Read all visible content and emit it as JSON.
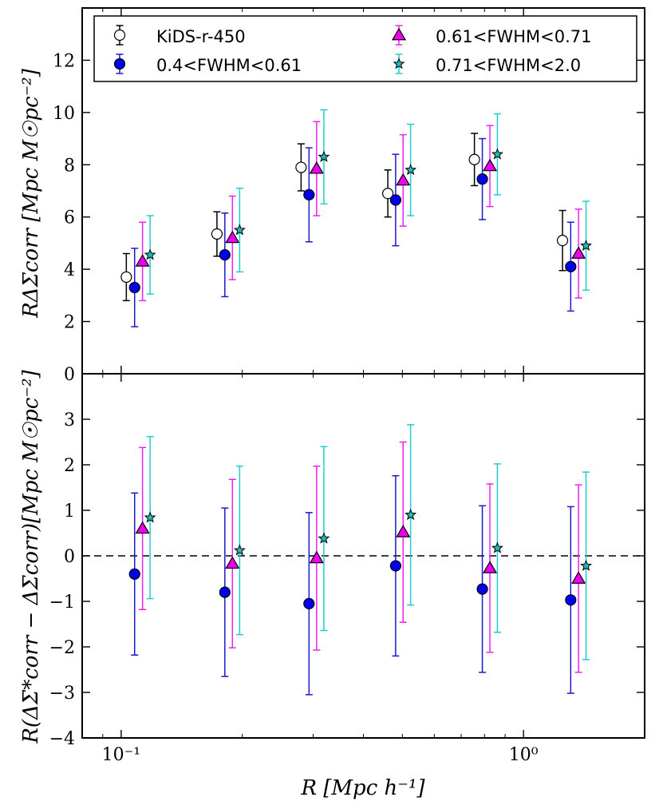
{
  "chart_data": {
    "type": "scatter",
    "x_scale": "log",
    "xlim": [
      0.08,
      2.0
    ],
    "xlabel": "R  [Mpc h⁻¹]",
    "x_ticks": [
      {
        "value": 0.1,
        "label": "10⁻¹"
      },
      {
        "value": 1.0,
        "label": "10⁰"
      }
    ],
    "panels": [
      {
        "id": "top",
        "ylabel": "RΔΣcorr  [Mpc M☉pc⁻²]",
        "ylim": [
          0,
          14
        ],
        "y_ticks": [
          0,
          2,
          4,
          6,
          8,
          10,
          12
        ],
        "zero_line": false,
        "series": [
          {
            "name": "KiDS-r-450",
            "marker": "circle",
            "fill": "#ffffff",
            "stroke": "#000000",
            "errcolor": "#000000",
            "x": [
              0.103,
              0.173,
              0.28,
              0.46,
              0.755,
              1.25
            ],
            "y": [
              3.7,
              5.35,
              7.9,
              6.9,
              8.2,
              5.1
            ],
            "err": [
              0.9,
              0.85,
              0.9,
              0.9,
              1.0,
              1.15
            ]
          },
          {
            "name": "0.4<FWHM<0.61",
            "marker": "circle",
            "fill": "#0000ee",
            "stroke": "#000000",
            "errcolor": "#1a1acc",
            "x": [
              0.108,
              0.181,
              0.293,
              0.481,
              0.79,
              1.31
            ],
            "y": [
              3.3,
              4.55,
              6.85,
              6.65,
              7.45,
              4.1
            ],
            "err": [
              1.5,
              1.6,
              1.8,
              1.75,
              1.55,
              1.7
            ]
          },
          {
            "name": "0.61<FWHM<0.71",
            "marker": "triangle",
            "fill": "#ee00ee",
            "stroke": "#000000",
            "errcolor": "#ee22ee",
            "x": [
              0.113,
              0.189,
              0.306,
              0.502,
              0.825,
              1.37
            ],
            "y": [
              4.3,
              5.2,
              7.85,
              7.4,
              7.95,
              4.6
            ],
            "err": [
              1.5,
              1.6,
              1.8,
              1.75,
              1.55,
              1.7
            ]
          },
          {
            "name": "0.71<FWHM<2.0",
            "marker": "star",
            "fill": "#22bbbb",
            "stroke": "#000000",
            "errcolor": "#22cccc",
            "x": [
              0.118,
              0.197,
              0.319,
              0.524,
              0.861,
              1.43
            ],
            "y": [
              4.55,
              5.5,
              8.3,
              7.8,
              8.4,
              4.9
            ],
            "err": [
              1.5,
              1.6,
              1.8,
              1.75,
              1.55,
              1.7
            ]
          }
        ]
      },
      {
        "id": "bottom",
        "ylabel": "R(ΔΣ*corr − ΔΣcorr)[Mpc M☉pc⁻²]",
        "ylim": [
          -4,
          4
        ],
        "y_ticks": [
          -4,
          -3,
          -2,
          -1,
          0,
          1,
          2,
          3
        ],
        "zero_line": true,
        "series": [
          {
            "name": "0.4<FWHM<0.61",
            "marker": "circle",
            "fill": "#0000ee",
            "stroke": "#000000",
            "errcolor": "#1a1acc",
            "x": [
              0.108,
              0.181,
              0.293,
              0.481,
              0.79,
              1.31
            ],
            "y": [
              -0.4,
              -0.8,
              -1.05,
              -0.22,
              -0.73,
              -0.97
            ],
            "err": [
              1.78,
              1.85,
              2.0,
              1.98,
              1.83,
              2.05
            ]
          },
          {
            "name": "0.61<FWHM<0.71",
            "marker": "triangle",
            "fill": "#ee00ee",
            "stroke": "#000000",
            "errcolor": "#ee22ee",
            "x": [
              0.113,
              0.189,
              0.306,
              0.502,
              0.825,
              1.37
            ],
            "y": [
              0.6,
              -0.17,
              -0.05,
              0.52,
              -0.27,
              -0.5
            ],
            "err": [
              1.78,
              1.85,
              2.02,
              1.98,
              1.85,
              2.06
            ]
          },
          {
            "name": "0.71<FWHM<2.0",
            "marker": "star",
            "fill": "#22bbbb",
            "stroke": "#000000",
            "errcolor": "#22cccc",
            "x": [
              0.118,
              0.197,
              0.319,
              0.524,
              0.861,
              1.43
            ],
            "y": [
              0.84,
              0.12,
              0.38,
              0.9,
              0.17,
              -0.22
            ],
            "err": [
              1.78,
              1.85,
              2.02,
              1.98,
              1.85,
              2.06
            ]
          }
        ]
      }
    ],
    "legend": {
      "placement": "top-center",
      "entries": [
        "KiDS-r-450",
        "0.4<FWHM<0.61",
        "0.61<FWHM<0.71",
        "0.71<FWHM<2.0"
      ]
    }
  }
}
